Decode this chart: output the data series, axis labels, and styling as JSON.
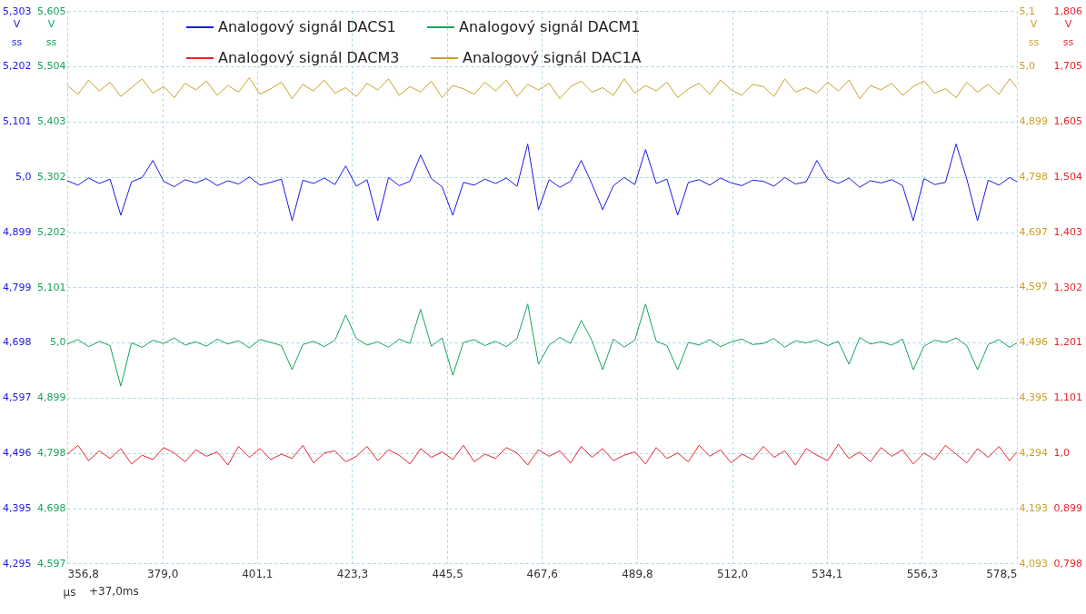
{
  "chart_data": [
    {
      "type": "line",
      "xlabel": "µs",
      "ylabel": "V ss",
      "y2label": "V ss",
      "annotations": [
        "+37,0ms"
      ],
      "grid": true,
      "legend": "top left",
      "line_style": "solid",
      "marker": "none",
      "x": [
        356.8,
        359.3,
        361.8,
        364.3,
        366.8,
        369.3,
        371.8,
        374.3,
        376.8,
        379.3,
        381.8,
        384.3,
        386.8,
        389.3,
        391.8,
        394.3,
        396.8,
        399.3,
        401.8,
        404.3,
        406.8,
        409.3,
        411.8,
        414.3,
        416.8,
        419.3,
        421.8,
        424.3,
        426.8,
        429.3,
        431.8,
        434.3,
        436.8,
        439.3,
        441.8,
        444.3,
        446.8,
        449.3,
        451.8,
        454.3,
        456.8,
        459.3,
        461.8,
        464.3,
        466.8,
        469.3,
        471.8,
        474.3,
        476.8,
        479.3,
        481.8,
        484.3,
        486.8,
        489.3,
        491.8,
        494.3,
        496.8,
        499.3,
        501.8,
        504.3,
        506.8,
        509.3,
        511.8,
        514.3,
        516.8,
        519.3,
        521.8,
        524.3,
        526.8,
        529.3,
        531.8,
        534.3,
        536.8,
        539.3,
        541.8,
        544.3,
        546.8,
        549.3,
        551.8,
        554.3,
        556.8,
        559.3,
        561.8,
        564.3,
        566.8,
        569.3,
        571.8,
        574.3,
        576.8,
        578.5
      ],
      "xlim": [
        356.8,
        578.5
      ],
      "xticks": [
        {
          "value": 356.8,
          "label": "356,8"
        },
        {
          "value": 379.0,
          "label": "379,0"
        },
        {
          "value": 401.1,
          "label": "401,1"
        },
        {
          "value": 423.3,
          "label": "423,3"
        },
        {
          "value": 445.5,
          "label": "445,5"
        },
        {
          "value": 467.6,
          "label": "467,6"
        },
        {
          "value": 489.8,
          "label": "489,8"
        },
        {
          "value": 512.0,
          "label": "512,0"
        },
        {
          "value": 534.1,
          "label": "534,1"
        },
        {
          "value": 556.3,
          "label": "556,3"
        },
        {
          "value": 578.5,
          "label": "578,5"
        }
      ],
      "ylim": [
        4.295,
        5.303
      ],
      "yticks": [
        {
          "value": 4.295,
          "label": "4,295"
        },
        {
          "value": 4.395,
          "label": "4,395"
        },
        {
          "value": 4.496,
          "label": "4,496"
        },
        {
          "value": 4.597,
          "label": "4,597"
        },
        {
          "value": 4.698,
          "label": "4,698"
        },
        {
          "value": 4.799,
          "label": "4,799"
        },
        {
          "value": 4.899,
          "label": "4,899"
        },
        {
          "value": 5.0,
          "label": "5,0"
        },
        {
          "value": 5.101,
          "label": "5,101"
        },
        {
          "value": 5.202,
          "label": "5,202"
        },
        {
          "value": 5.303,
          "label": "5,303"
        }
      ],
      "y2lim": [
        4.597,
        5.605
      ],
      "y2ticks": [
        {
          "value": 4.597,
          "label": "4,597"
        },
        {
          "value": 4.698,
          "label": "4,698"
        },
        {
          "value": 4.798,
          "label": "4,798"
        },
        {
          "value": 4.899,
          "label": "4,899"
        },
        {
          "value": 5.0,
          "label": "5,0"
        },
        {
          "value": 5.101,
          "label": "5,101"
        },
        {
          "value": 5.202,
          "label": "5,202"
        },
        {
          "value": 5.302,
          "label": "5,302"
        },
        {
          "value": 5.403,
          "label": "5,403"
        },
        {
          "value": 5.504,
          "label": "5,504"
        },
        {
          "value": 5.605,
          "label": "5,605"
        }
      ],
      "series": [
        {
          "name": "Analogový signál DACS1",
          "color": "#1a1ae6",
          "values": [
            4.993,
            4.985,
            4.998,
            4.988,
            4.996,
            4.93,
            4.991,
            4.999,
            5.03,
            4.992,
            4.982,
            4.995,
            4.989,
            4.997,
            4.984,
            4.993,
            4.987,
            5.0,
            4.985,
            4.99,
            4.996,
            4.92,
            4.994,
            4.988,
            4.998,
            4.986,
            5.02,
            4.983,
            4.995,
            4.92,
            4.999,
            4.984,
            4.992,
            5.04,
            4.997,
            4.982,
            4.93,
            4.99,
            4.985,
            4.996,
            4.988,
            4.998,
            4.983,
            5.06,
            4.94,
            4.995,
            4.981,
            4.992,
            5.03,
            4.987,
            4.94,
            4.984,
            4.999,
            4.986,
            5.05,
            4.988,
            4.996,
            4.93,
            4.99,
            4.995,
            4.985,
            4.998,
            4.989,
            4.984,
            4.994,
            4.992,
            4.983,
            4.999,
            4.987,
            4.991,
            5.03,
            4.996,
            4.988,
            4.998,
            4.981,
            4.993,
            4.989,
            4.995,
            4.984,
            4.92,
            4.997,
            4.986,
            4.99,
            5.06,
            4.996,
            4.92,
            4.994,
            4.985,
            4.999,
            4.991
          ]
        },
        {
          "name": "Analogový signál DACM1",
          "color": "#16a55a",
          "axis": "y2",
          "values": [
            4.997,
            5.005,
            4.992,
            5.002,
            4.994,
            4.92,
            4.999,
            4.991,
            5.004,
            4.998,
            5.008,
            4.995,
            5.001,
            4.993,
            5.006,
            4.997,
            5.003,
            4.99,
            5.005,
            5.0,
            4.994,
            4.95,
            4.996,
            5.002,
            4.992,
            5.004,
            5.05,
            5.007,
            4.995,
            5.001,
            4.991,
            5.006,
            4.998,
            5.06,
            4.993,
            5.008,
            4.94,
            5.0,
            5.005,
            4.994,
            5.002,
            4.992,
            5.007,
            5.07,
            4.96,
            4.995,
            5.009,
            4.998,
            5.04,
            5.003,
            4.95,
            5.006,
            4.991,
            5.004,
            5.07,
            5.002,
            4.994,
            4.95,
            5.0,
            4.995,
            5.005,
            4.992,
            5.001,
            5.006,
            4.996,
            4.998,
            5.007,
            4.991,
            5.003,
            4.999,
            5.004,
            4.994,
            5.002,
            4.96,
            5.009,
            4.997,
            5.001,
            4.995,
            5.006,
            4.95,
            4.993,
            5.004,
            5.0,
            5.008,
            4.994,
            4.95,
            4.996,
            5.005,
            4.991,
            4.999
          ]
        }
      ]
    },
    {
      "type": "line",
      "ylabel": "V ss",
      "y2label": "V ss",
      "legend": "top left",
      "line_style": "solid",
      "marker": "none",
      "tick_labels": "y",
      "x": [
        356.8,
        359.3,
        361.8,
        364.3,
        366.8,
        369.3,
        371.8,
        374.3,
        376.8,
        379.3,
        381.8,
        384.3,
        386.8,
        389.3,
        391.8,
        394.3,
        396.8,
        399.3,
        401.8,
        404.3,
        406.8,
        409.3,
        411.8,
        414.3,
        416.8,
        419.3,
        421.8,
        424.3,
        426.8,
        429.3,
        431.8,
        434.3,
        436.8,
        439.3,
        441.8,
        444.3,
        446.8,
        449.3,
        451.8,
        454.3,
        456.8,
        459.3,
        461.8,
        464.3,
        466.8,
        469.3,
        471.8,
        474.3,
        476.8,
        479.3,
        481.8,
        484.3,
        486.8,
        489.3,
        491.8,
        494.3,
        496.8,
        499.3,
        501.8,
        504.3,
        506.8,
        509.3,
        511.8,
        514.3,
        516.8,
        519.3,
        521.8,
        524.3,
        526.8,
        529.3,
        531.8,
        534.3,
        536.8,
        539.3,
        541.8,
        544.3,
        546.8,
        549.3,
        551.8,
        554.3,
        556.8,
        559.3,
        561.8,
        564.3,
        566.8,
        569.3,
        571.8,
        574.3,
        576.8,
        578.5
      ],
      "xlim": [
        356.8,
        578.5
      ],
      "ylim": [
        0.798,
        1.806
      ],
      "yticks": [
        {
          "value": 0.798,
          "label": "0,798"
        },
        {
          "value": 0.899,
          "label": "0,899"
        },
        {
          "value": 1.0,
          "label": "1,0"
        },
        {
          "value": 1.101,
          "label": "1,101"
        },
        {
          "value": 1.201,
          "label": "1,201"
        },
        {
          "value": 1.302,
          "label": "1,302"
        },
        {
          "value": 1.403,
          "label": "1,403"
        },
        {
          "value": 1.504,
          "label": "1,504"
        },
        {
          "value": 1.605,
          "label": "1,605"
        },
        {
          "value": 1.705,
          "label": "1,705"
        },
        {
          "value": 1.806,
          "label": "1,806"
        }
      ],
      "y2lim": [
        4.093,
        5.1
      ],
      "y2ticks": [
        {
          "value": 4.093,
          "label": "4,093"
        },
        {
          "value": 4.193,
          "label": "4,193"
        },
        {
          "value": 4.294,
          "label": "4,294"
        },
        {
          "value": 4.395,
          "label": "4,395"
        },
        {
          "value": 4.496,
          "label": "4,496"
        },
        {
          "value": 4.597,
          "label": "4,597"
        },
        {
          "value": 4.697,
          "label": "4,697"
        },
        {
          "value": 4.798,
          "label": "4,798"
        },
        {
          "value": 4.899,
          "label": "4,899"
        },
        {
          "value": 5.0,
          "label": "5,0"
        },
        {
          "value": 5.1,
          "label": "5,1"
        }
      ],
      "series": [
        {
          "name": "Analogový signál DACM3",
          "color": "#e8232d",
          "values": [
            0.997,
            1.013,
            0.985,
            1.003,
            0.989,
            1.007,
            0.979,
            0.995,
            0.987,
            1.009,
            0.999,
            0.983,
            1.005,
            0.993,
            1.001,
            0.977,
            1.011,
            0.991,
            1.007,
            0.987,
            0.997,
            0.989,
            1.013,
            0.981,
            0.999,
            1.003,
            0.983,
            0.993,
            1.011,
            0.985,
            1.005,
            0.995,
            0.979,
            1.007,
            0.991,
            1.001,
            0.987,
            1.013,
            0.983,
            0.997,
            0.989,
            1.009,
            0.999,
            0.977,
            1.005,
            0.993,
            1.003,
            0.981,
            1.011,
            0.991,
            1.007,
            0.985,
            0.995,
            1.001,
            0.979,
            1.009,
            0.989,
            0.999,
            0.983,
            1.013,
            0.993,
            1.005,
            0.981,
            0.997,
            0.987,
            1.011,
            0.991,
            1.003,
            0.977,
            1.007,
            0.995,
            0.985,
            1.015,
            0.989,
            1.001,
            0.983,
            1.009,
            0.993,
            1.005,
            0.979,
            0.999,
            0.987,
            1.013,
            0.997,
            0.981,
            1.007,
            0.991,
            1.011,
            0.985,
            1.001
          ]
        },
        {
          "name": "Analogový signál DAC1A",
          "color": "#c9a12a",
          "axis": "y2",
          "values": [
            4.964,
            4.948,
            4.974,
            4.954,
            4.97,
            4.944,
            4.96,
            4.976,
            4.95,
            4.962,
            4.942,
            4.968,
            4.956,
            4.972,
            4.946,
            4.964,
            4.952,
            4.978,
            4.948,
            4.958,
            4.97,
            4.94,
            4.966,
            4.954,
            4.974,
            4.95,
            4.96,
            4.944,
            4.968,
            4.956,
            4.976,
            4.946,
            4.962,
            4.952,
            4.972,
            4.942,
            4.964,
            4.958,
            4.948,
            4.97,
            4.954,
            4.974,
            4.944,
            4.966,
            4.956,
            4.968,
            4.94,
            4.962,
            4.972,
            4.952,
            4.96,
            4.946,
            4.976,
            4.95,
            4.964,
            4.954,
            4.97,
            4.942,
            4.958,
            4.968,
            4.948,
            4.974,
            4.956,
            4.946,
            4.966,
            4.962,
            4.944,
            4.976,
            4.952,
            4.96,
            4.95,
            4.97,
            4.954,
            4.974,
            4.94,
            4.964,
            4.956,
            4.968,
            4.946,
            4.962,
            4.972,
            4.95,
            4.958,
            4.942,
            4.97,
            4.952,
            4.966,
            4.948,
            4.976,
            4.96
          ]
        }
      ]
    }
  ]
}
